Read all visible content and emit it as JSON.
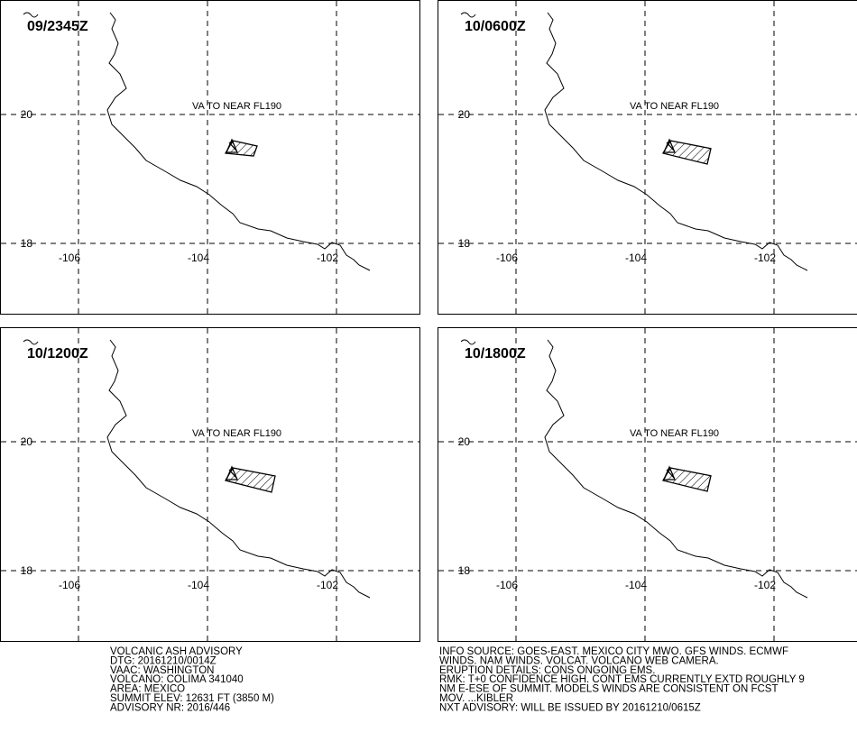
{
  "panels": [
    {
      "time": "09/2345Z",
      "ash_label": "VA TO NEAR FL190"
    },
    {
      "time": "10/0600Z",
      "ash_label": "VA TO NEAR FL190"
    },
    {
      "time": "10/1200Z",
      "ash_label": "VA TO NEAR FL190"
    },
    {
      "time": "10/1800Z",
      "ash_label": "VA TO NEAR FL190"
    }
  ],
  "map": {
    "lon_labels": [
      "-106",
      "-104",
      "-102"
    ],
    "lat_labels": [
      "20",
      "18"
    ]
  },
  "advisory": {
    "left": [
      "VOLCANIC ASH ADVISORY",
      "DTG: 20161210/0014Z",
      "VAAC: WASHINGTON",
      "VOLCANO: COLIMA 341040",
      "AREA: MEXICO",
      "SUMMIT ELEV: 12631 FT (3850 M)",
      "ADVISORY NR: 2016/446"
    ],
    "right": [
      "INFO SOURCE: GOES-EAST. MEXICO CITY MWO. GFS WINDS. ECMWF",
      "WINDS. NAM WINDS. VOLCAT. VOLCANO WEB CAMERA.",
      "ERUPTION DETAILS: CONS ONGOING EMS.",
      "RMK: T+0 CONFIDENCE HIGH. CONT EMS CURRENTLY EXTD ROUGHLY 9",
      "NM E-ESE OF SUMMIT. MODELS WINDS ARE CONSISTENT ON FCST",
      "MOV. ...KIBLER",
      "NXT ADVISORY: WILL BE ISSUED BY 20161210/0615Z"
    ]
  }
}
